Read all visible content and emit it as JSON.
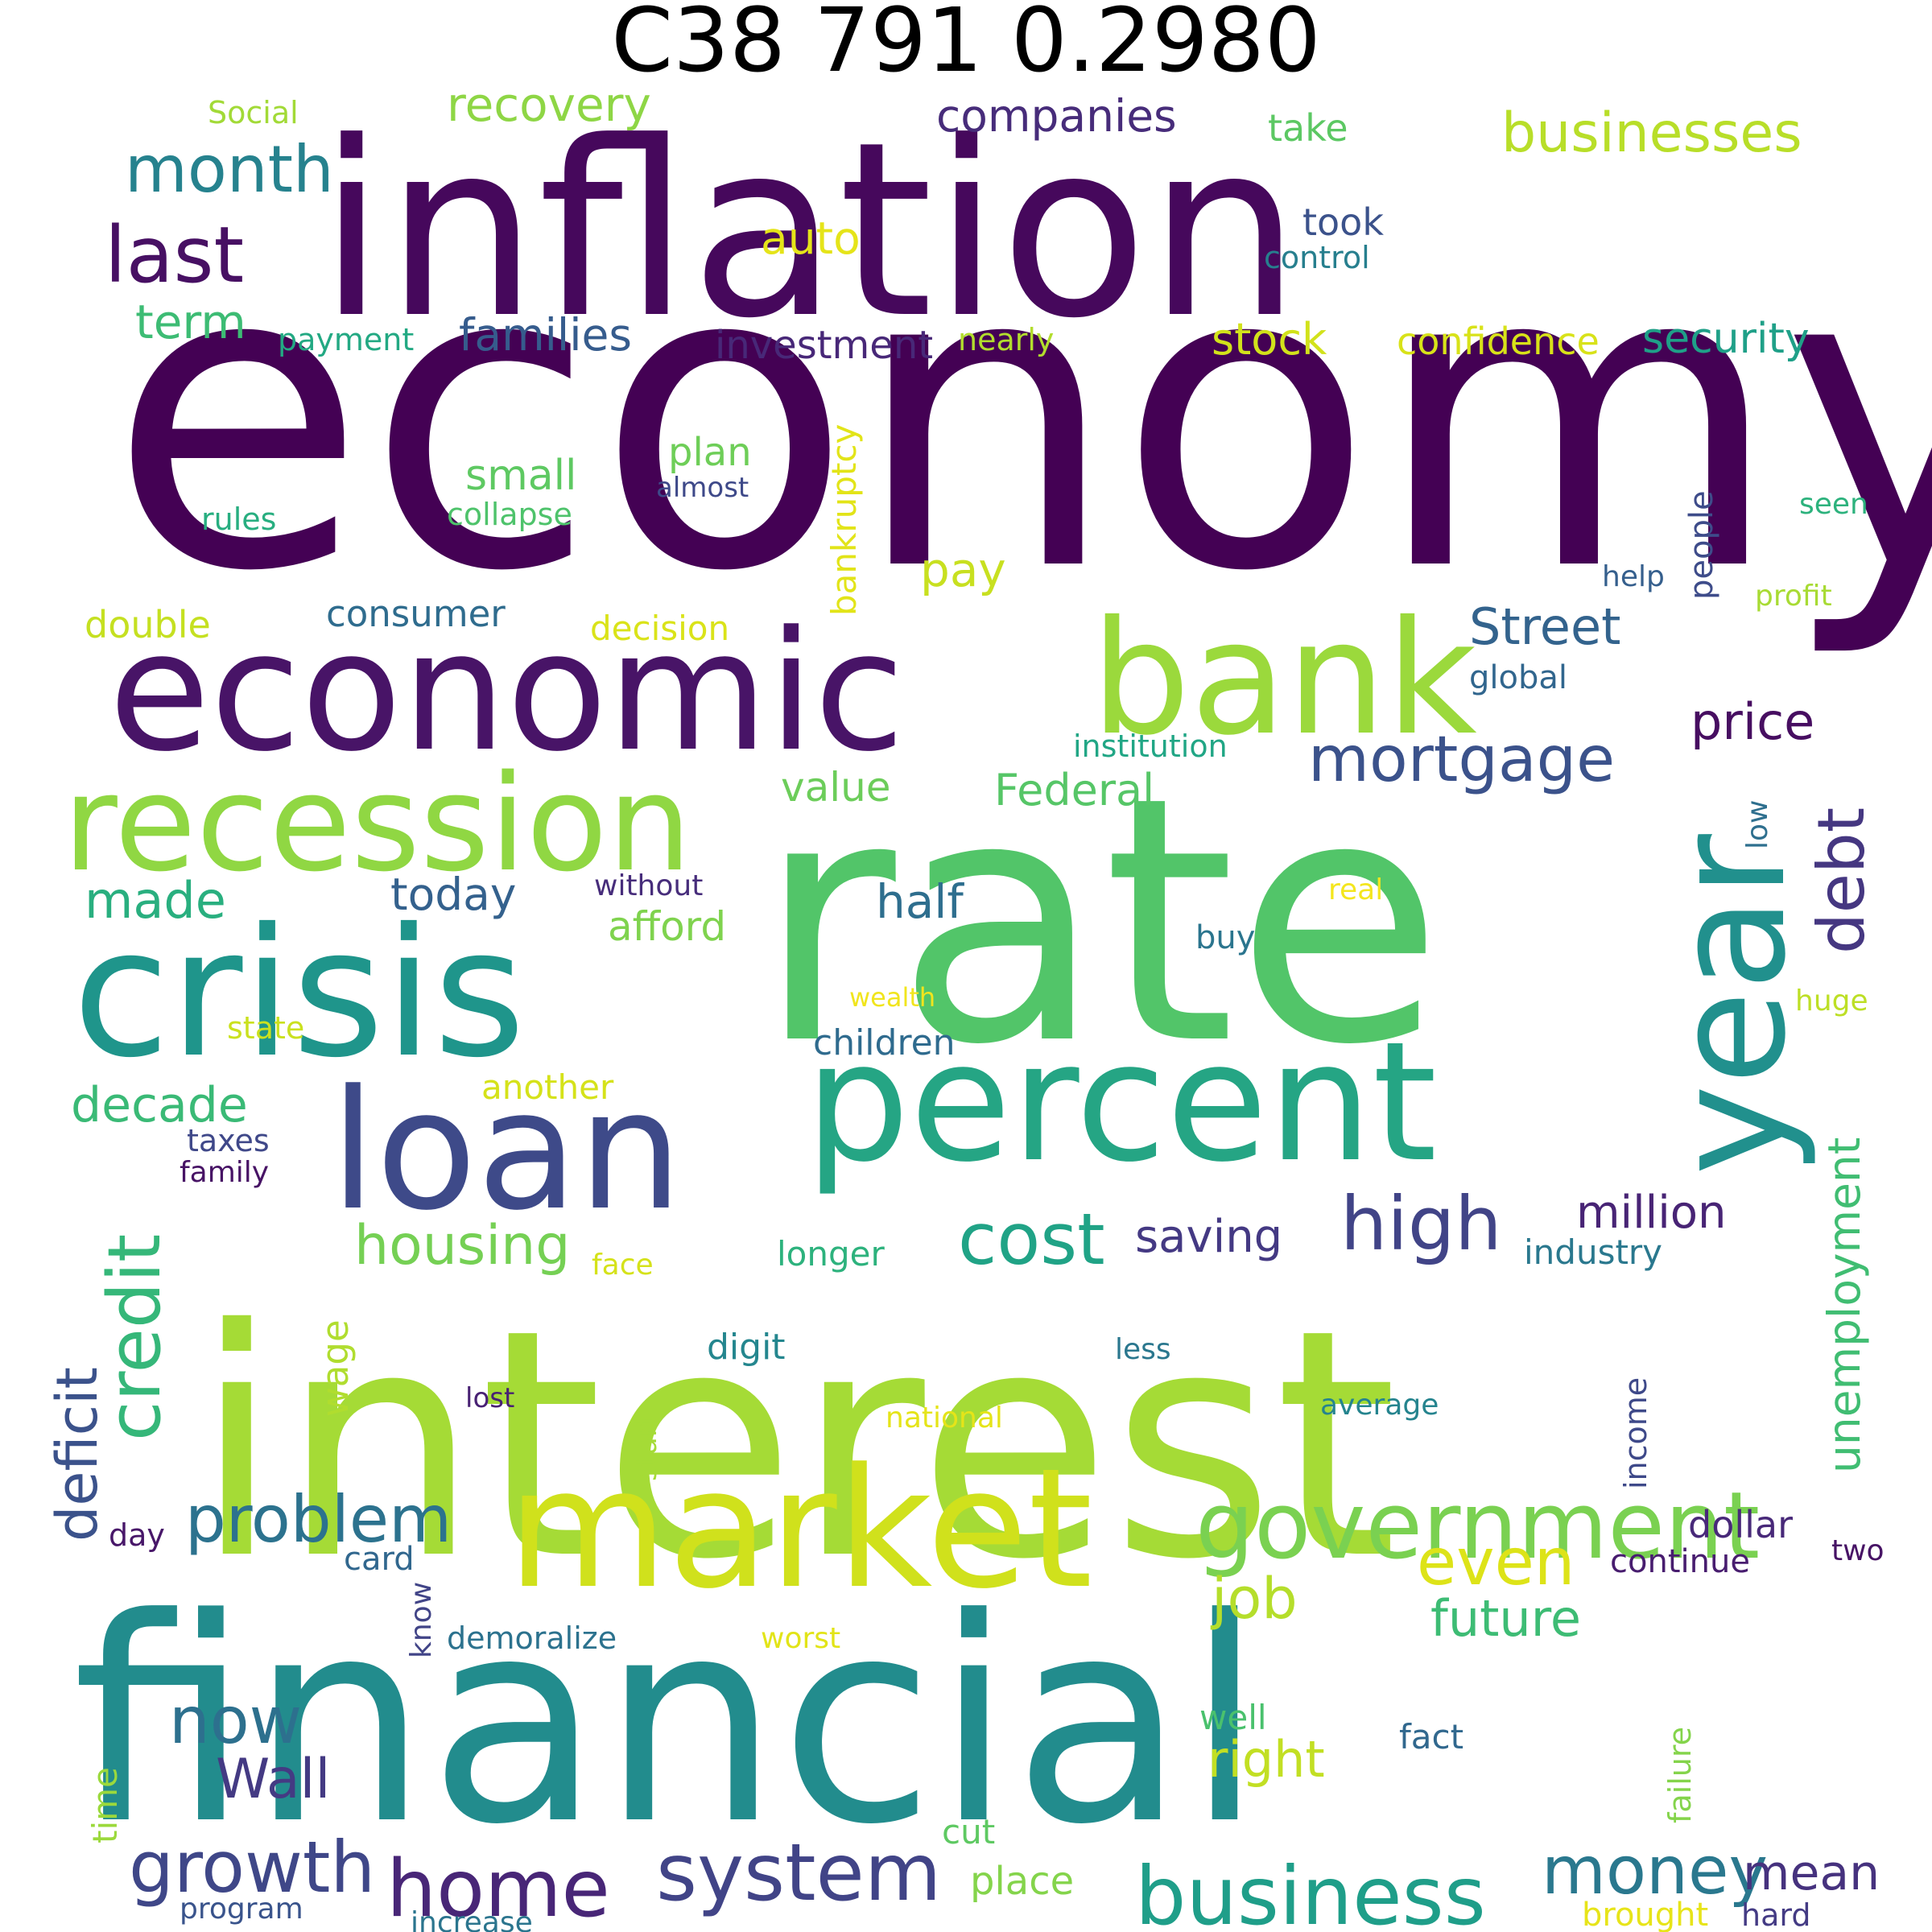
{
  "title": "C38 791 0.2980",
  "words": [
    {
      "text": "economy",
      "color": "#440154"
    },
    {
      "text": "inflation",
      "color": "#46085c"
    },
    {
      "text": "rate",
      "color": "#52c569"
    },
    {
      "text": "interest",
      "color": "#a5db36"
    },
    {
      "text": "financial",
      "color": "#228c8d"
    },
    {
      "text": "economic",
      "color": "#481467"
    },
    {
      "text": "percent",
      "color": "#25a584"
    },
    {
      "text": "market",
      "color": "#d0e11c"
    },
    {
      "text": "crisis",
      "color": "#1f958b"
    },
    {
      "text": "bank",
      "color": "#9bd93c"
    },
    {
      "text": "recession",
      "color": "#90d743"
    },
    {
      "text": "loan",
      "color": "#3e4a89"
    },
    {
      "text": "year",
      "color": "#21908d"
    },
    {
      "text": "government",
      "color": "#7ad151"
    },
    {
      "text": "business",
      "color": "#1f9e89"
    },
    {
      "text": "system",
      "color": "#414487"
    },
    {
      "text": "home",
      "color": "#482677"
    },
    {
      "text": "growth",
      "color": "#3f4788"
    },
    {
      "text": "problem",
      "color": "#2c728e"
    },
    {
      "text": "mortgage",
      "color": "#3b528b"
    },
    {
      "text": "high",
      "color": "#414487"
    },
    {
      "text": "cost",
      "color": "#20a386"
    },
    {
      "text": "money",
      "color": "#2a788e"
    },
    {
      "text": "credit",
      "color": "#35b779"
    },
    {
      "text": "month",
      "color": "#26828e"
    },
    {
      "text": "last",
      "color": "#471063"
    },
    {
      "text": "businesses",
      "color": "#b8de29"
    },
    {
      "text": "now",
      "color": "#2d708e"
    },
    {
      "text": "even",
      "color": "#dde318"
    },
    {
      "text": "job",
      "color": "#b5de2b"
    },
    {
      "text": "housing",
      "color": "#75d054"
    },
    {
      "text": "deficit",
      "color": "#3b528b"
    },
    {
      "text": "unemployment",
      "color": "#40bd72"
    },
    {
      "text": "debt",
      "color": "#453781"
    },
    {
      "text": "Street",
      "color": "#33638d"
    },
    {
      "text": "future",
      "color": "#3dbc74"
    },
    {
      "text": "Wall",
      "color": "#443a83"
    },
    {
      "text": "right",
      "color": "#c2df23"
    },
    {
      "text": "price",
      "color": "#470e61"
    },
    {
      "text": "mean",
      "color": "#46327e"
    },
    {
      "text": "decade",
      "color": "#3aba76"
    },
    {
      "text": "made",
      "color": "#29af7f"
    },
    {
      "text": "million",
      "color": "#482475"
    },
    {
      "text": "families",
      "color": "#365c8d"
    },
    {
      "text": "companies",
      "color": "#472c7a"
    },
    {
      "text": "recovery",
      "color": "#8ed645"
    },
    {
      "text": "half",
      "color": "#2e6e8e"
    },
    {
      "text": "today",
      "color": "#34618d"
    },
    {
      "text": "term",
      "color": "#3dbc74"
    },
    {
      "text": "stock",
      "color": "#d2e21b"
    },
    {
      "text": "security",
      "color": "#1fa088"
    },
    {
      "text": "Federal",
      "color": "#56c667"
    },
    {
      "text": "value",
      "color": "#6ccd5a"
    },
    {
      "text": "saving",
      "color": "#443983"
    },
    {
      "text": "pay",
      "color": "#c8e020"
    },
    {
      "text": "small",
      "color": "#5ec962"
    },
    {
      "text": "auto",
      "color": "#e5e419"
    },
    {
      "text": "plan",
      "color": "#6ece58"
    },
    {
      "text": "afford",
      "color": "#7fd34e"
    },
    {
      "text": "investment",
      "color": "#482878"
    },
    {
      "text": "take",
      "color": "#5cc863"
    },
    {
      "text": "took",
      "color": "#3b528b"
    },
    {
      "text": "confidence",
      "color": "#d8e219"
    },
    {
      "text": "consumer",
      "color": "#2f6c8e"
    },
    {
      "text": "wage",
      "color": "#b0dd2f"
    },
    {
      "text": "double",
      "color": "#c5e021"
    },
    {
      "text": "decision",
      "color": "#dae319"
    },
    {
      "text": "bankruptcy",
      "color": "#e2e418"
    },
    {
      "text": "children",
      "color": "#2f6b8e"
    },
    {
      "text": "another",
      "color": "#d5e21a"
    },
    {
      "text": "digit",
      "color": "#24868e"
    },
    {
      "text": "longer",
      "color": "#2db27d"
    },
    {
      "text": "industry",
      "color": "#2a788e"
    },
    {
      "text": "global",
      "color": "#31668e"
    },
    {
      "text": "institution",
      "color": "#21a685"
    },
    {
      "text": "card",
      "color": "#31678e"
    },
    {
      "text": "income",
      "color": "#3e4989"
    },
    {
      "text": "dollar",
      "color": "#482979"
    },
    {
      "text": "continue",
      "color": "#481d6f"
    },
    {
      "text": "people",
      "color": "#3e4c8a"
    },
    {
      "text": "well",
      "color": "#4ac16d"
    },
    {
      "text": "fact",
      "color": "#31688e"
    },
    {
      "text": "place",
      "color": "#84d44b"
    },
    {
      "text": "program",
      "color": "#3a548c"
    },
    {
      "text": "increase",
      "color": "#2b758e"
    },
    {
      "text": "brought",
      "color": "#e7e419"
    },
    {
      "text": "hard",
      "color": "#443b84"
    },
    {
      "text": "failure",
      "color": "#84d44b"
    },
    {
      "text": "cut",
      "color": "#5ec962"
    },
    {
      "text": "time",
      "color": "#9bd93c"
    },
    {
      "text": "demoralize",
      "color": "#2c728e"
    },
    {
      "text": "worst",
      "color": "#e2e418"
    },
    {
      "text": "know",
      "color": "#414487"
    },
    {
      "text": "day",
      "color": "#481769"
    },
    {
      "text": "start",
      "color": "#a5db36"
    },
    {
      "text": "face",
      "color": "#d5e21a"
    },
    {
      "text": "national",
      "color": "#e5e419"
    },
    {
      "text": "average",
      "color": "#25848e"
    },
    {
      "text": "lost",
      "color": "#482173"
    },
    {
      "text": "less",
      "color": "#2a778e"
    },
    {
      "text": "taxes",
      "color": "#3f4889"
    },
    {
      "text": "family",
      "color": "#471365"
    },
    {
      "text": "state",
      "color": "#cae11f"
    },
    {
      "text": "wealth",
      "color": "#f1e51d"
    },
    {
      "text": "real",
      "color": "#f4e61e"
    },
    {
      "text": "buy",
      "color": "#2b758e"
    },
    {
      "text": "without",
      "color": "#472d7b"
    },
    {
      "text": "huge",
      "color": "#bddf26"
    },
    {
      "text": "low",
      "color": "#2e6f8e"
    },
    {
      "text": "help",
      "color": "#355f8d"
    },
    {
      "text": "profit",
      "color": "#a8db34"
    },
    {
      "text": "seen",
      "color": "#2db27d"
    },
    {
      "text": "rules",
      "color": "#28ae80"
    },
    {
      "text": "collapse",
      "color": "#4ec36b"
    },
    {
      "text": "almost",
      "color": "#3e4989"
    },
    {
      "text": "nearly",
      "color": "#b2dd2d"
    },
    {
      "text": "control",
      "color": "#277f8e"
    },
    {
      "text": "payment",
      "color": "#23a983"
    },
    {
      "text": "Social",
      "color": "#a2da37"
    },
    {
      "text": "two",
      "color": "#471365"
    }
  ]
}
